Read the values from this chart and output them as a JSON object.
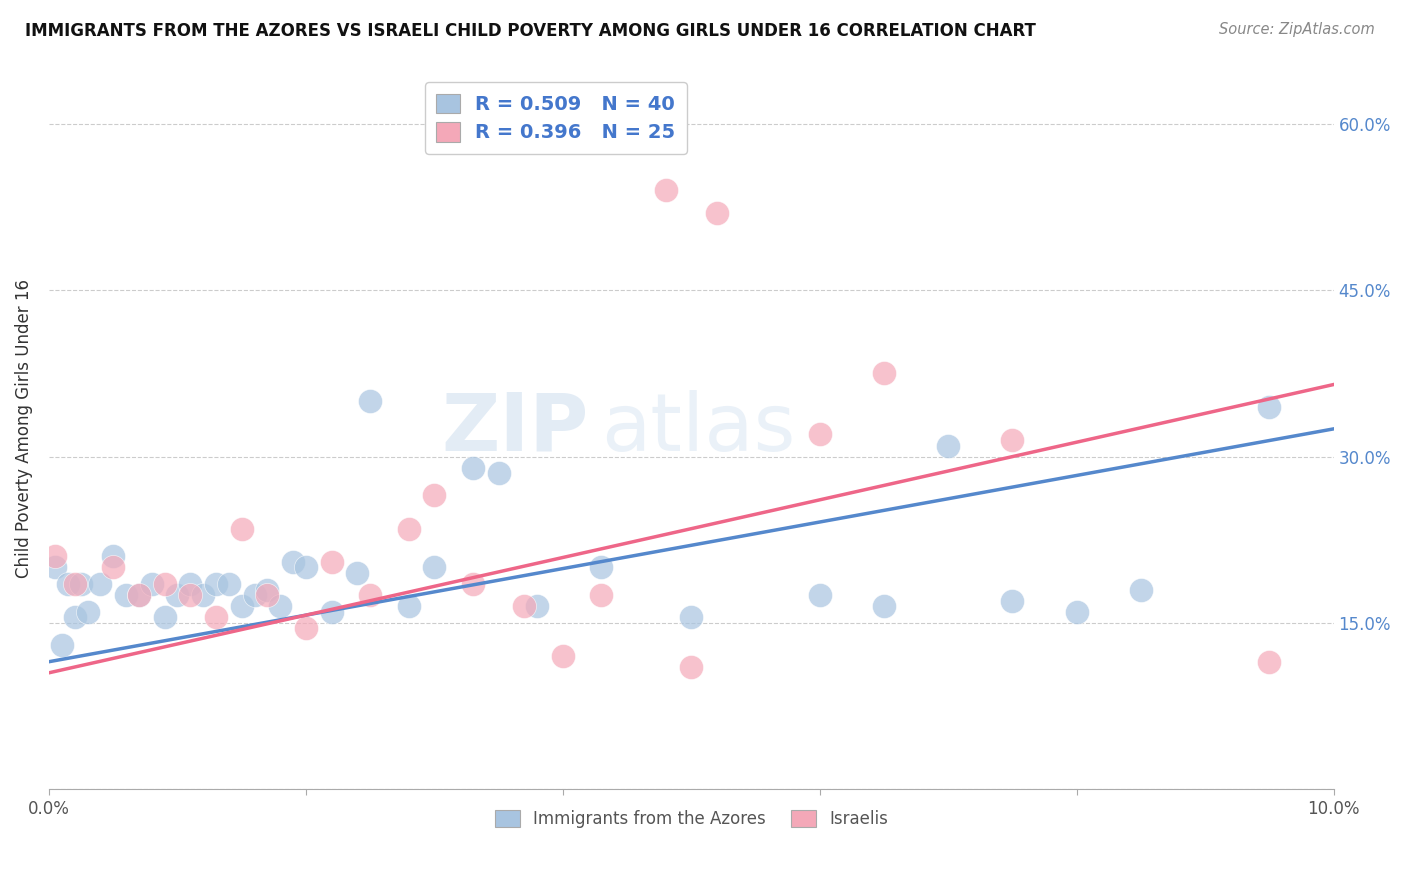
{
  "title": "IMMIGRANTS FROM THE AZORES VS ISRAELI CHILD POVERTY AMONG GIRLS UNDER 16 CORRELATION CHART",
  "source": "Source: ZipAtlas.com",
  "ylabel": "Child Poverty Among Girls Under 16",
  "xmin": 0.0,
  "xmax": 0.1,
  "ymin": 0.0,
  "ymax": 0.65,
  "legend_label1": "Immigrants from the Azores",
  "legend_label2": "Israelis",
  "color_blue": "#A8C4E0",
  "color_pink": "#F4A8B8",
  "line_color_blue": "#5588CC",
  "line_color_pink": "#EE6688",
  "right_tick_color": "#5588CC",
  "watermark_zip": "ZIP",
  "watermark_atlas": "atlas",
  "blue_points_x": [
    0.0005,
    0.001,
    0.0015,
    0.002,
    0.0025,
    0.003,
    0.004,
    0.005,
    0.006,
    0.007,
    0.008,
    0.009,
    0.01,
    0.011,
    0.012,
    0.013,
    0.014,
    0.015,
    0.016,
    0.017,
    0.018,
    0.019,
    0.02,
    0.022,
    0.024,
    0.025,
    0.028,
    0.03,
    0.033,
    0.035,
    0.038,
    0.043,
    0.05,
    0.06,
    0.065,
    0.07,
    0.075,
    0.08,
    0.085,
    0.095
  ],
  "blue_points_y": [
    0.2,
    0.13,
    0.185,
    0.155,
    0.185,
    0.16,
    0.185,
    0.21,
    0.175,
    0.175,
    0.185,
    0.155,
    0.175,
    0.185,
    0.175,
    0.185,
    0.185,
    0.165,
    0.175,
    0.18,
    0.165,
    0.205,
    0.2,
    0.16,
    0.195,
    0.35,
    0.165,
    0.2,
    0.29,
    0.285,
    0.165,
    0.2,
    0.155,
    0.175,
    0.165,
    0.31,
    0.17,
    0.16,
    0.18,
    0.345
  ],
  "pink_points_x": [
    0.0005,
    0.002,
    0.005,
    0.007,
    0.009,
    0.011,
    0.013,
    0.015,
    0.017,
    0.02,
    0.022,
    0.025,
    0.028,
    0.03,
    0.033,
    0.037,
    0.04,
    0.043,
    0.048,
    0.05,
    0.052,
    0.06,
    0.065,
    0.075,
    0.095
  ],
  "pink_points_y": [
    0.21,
    0.185,
    0.2,
    0.175,
    0.185,
    0.175,
    0.155,
    0.235,
    0.175,
    0.145,
    0.205,
    0.175,
    0.235,
    0.265,
    0.185,
    0.165,
    0.12,
    0.175,
    0.54,
    0.11,
    0.52,
    0.32,
    0.375,
    0.315,
    0.115
  ],
  "blue_line_x": [
    0.0,
    0.1
  ],
  "blue_line_y": [
    0.115,
    0.325
  ],
  "pink_line_x": [
    0.0,
    0.1
  ],
  "pink_line_y": [
    0.105,
    0.365
  ]
}
